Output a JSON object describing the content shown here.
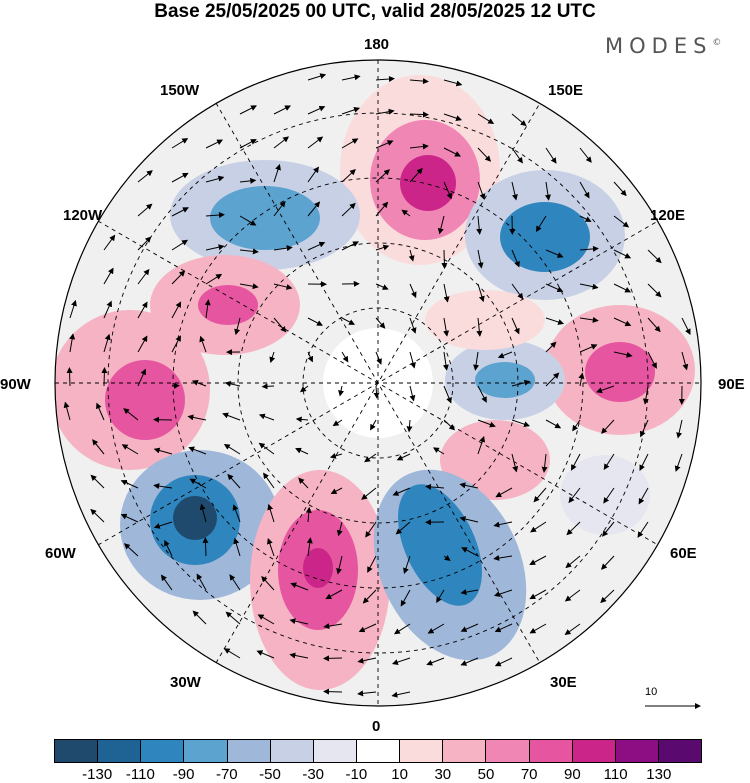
{
  "title": "Base 25/05/2025 00 UTC, valid 28/05/2025 12 UTC",
  "brand": "MODES",
  "brand_mark": "©",
  "longitude_labels": {
    "n180": "180",
    "w150": "150W",
    "e150": "150E",
    "w120": "120W",
    "e120": "120E",
    "w90": "90W",
    "e90": "90E",
    "w60": "60W",
    "e60": "60E",
    "w30": "30W",
    "e30": "30E",
    "s0": "0"
  },
  "reference_vector": "10",
  "colorbar": {
    "colors": [
      "#1f4a6e",
      "#1f6394",
      "#2f85bd",
      "#5ca3cf",
      "#9fb7d9",
      "#c8d0e6",
      "#e6e6f0",
      "#ffffff",
      "#fbdcdc",
      "#f6b3c3",
      "#f086b4",
      "#e6559f",
      "#cc2589",
      "#8d0d82",
      "#5a0a6e"
    ],
    "ticks": [
      "-130",
      "-110",
      "-90",
      "-70",
      "-50",
      "-30",
      "-10",
      "10",
      "30",
      "50",
      "70",
      "90",
      "110",
      "130"
    ]
  },
  "anomaly_centers": [
    {
      "kind": "positive",
      "level": 90,
      "color": "#e6559f"
    },
    {
      "kind": "negative",
      "level": -90,
      "color": "#2f85bd"
    }
  ]
}
